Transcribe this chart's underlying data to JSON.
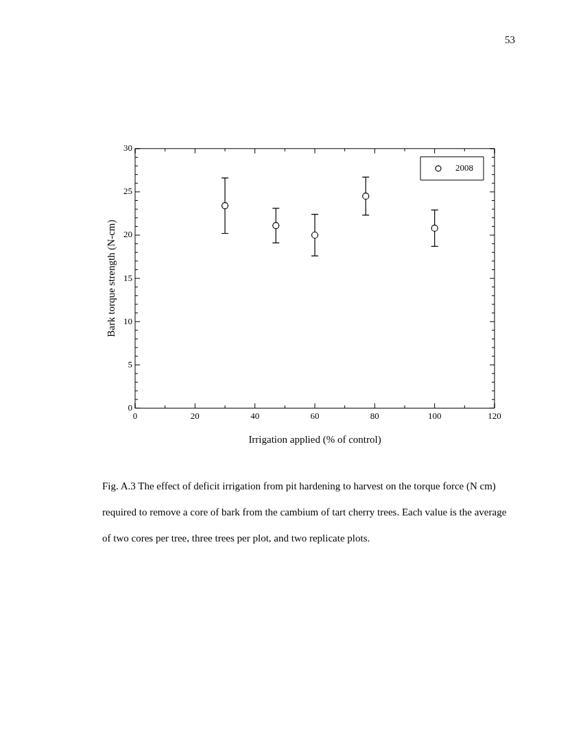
{
  "chart_data": {
    "type": "scatter",
    "xlabel": "Irrigation applied (% of control)",
    "ylabel": "Bark torque strength (N-cm)",
    "x": [
      30,
      47,
      60,
      77,
      100
    ],
    "series": [
      {
        "name": "2008",
        "color": "#000000",
        "values": [
          23.4,
          21.1,
          20.0,
          24.5,
          20.8
        ],
        "errors": [
          3.2,
          2.0,
          2.4,
          2.2,
          2.1
        ]
      }
    ],
    "xlim": [
      0,
      120
    ],
    "xticks": [
      0,
      20,
      40,
      60,
      80,
      100,
      120
    ],
    "ylim": [
      0,
      30
    ],
    "yticks": [
      0,
      5,
      10,
      15,
      20,
      25,
      30
    ],
    "grid": false,
    "legend": "top right",
    "marker": "circle",
    "annotations": [
      "53",
      "Fig. A.3  The effect of deficit irrigation from pit hardening to harvest on the torque force (N cm) required to remove a core of bark from the cambium of tart cherry trees.  Each value is the average of two cores per tree, three trees per plot, and two replicate plots."
    ]
  }
}
